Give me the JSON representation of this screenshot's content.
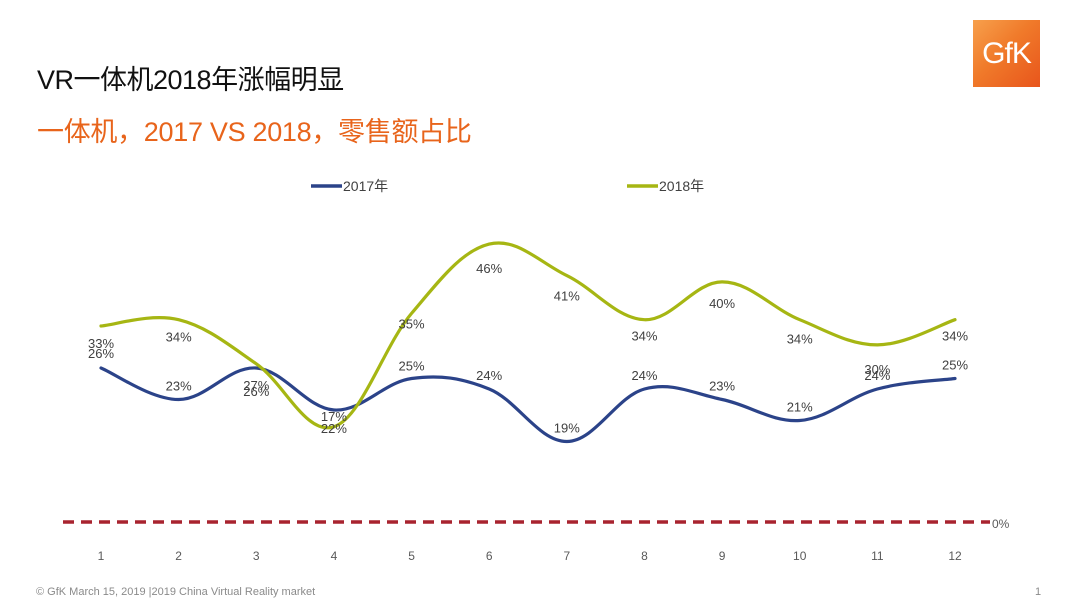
{
  "header": {
    "title": "VR一体机2018年涨幅明显",
    "subtitle": "一体机，2017 VS 2018，零售额占比",
    "logo_text": "GfK"
  },
  "footer": {
    "text": "© GfK March 15, 2019 |2019 China Virtual Reality market",
    "page_number": "1"
  },
  "colors": {
    "series_2017": "#2b4389",
    "series_2018": "#a6b613",
    "baseline": "#a8232f",
    "accent": "#e8641b"
  },
  "chart_data": {
    "type": "line",
    "title": "一体机，2017 VS 2018，零售额占比",
    "xlabel": "",
    "ylabel": "",
    "categories": [
      "1",
      "2",
      "3",
      "4",
      "5",
      "6",
      "7",
      "8",
      "9",
      "10",
      "11",
      "12"
    ],
    "series": [
      {
        "name": "2017年",
        "values": [
          26,
          23,
          26,
          22,
          25,
          24,
          19,
          24,
          23,
          21,
          24,
          25
        ],
        "labels": [
          "26%",
          "23%",
          "26%",
          "22%",
          "25%",
          "24%",
          "19%",
          "24%",
          "23%",
          "21%",
          "24%",
          "25%"
        ]
      },
      {
        "name": "2018年",
        "values": [
          33,
          34,
          27,
          17,
          35,
          46,
          41,
          34,
          40,
          34,
          30,
          34
        ],
        "labels": [
          "33%",
          "34%",
          "27%",
          "17%",
          "35%",
          "46%",
          "41%",
          "34%",
          "40%",
          "34%",
          "30%",
          "34%"
        ]
      }
    ],
    "baseline": {
      "value": 0,
      "label": "0%"
    },
    "legend_position": "top",
    "grid": false,
    "smoothed": true
  }
}
